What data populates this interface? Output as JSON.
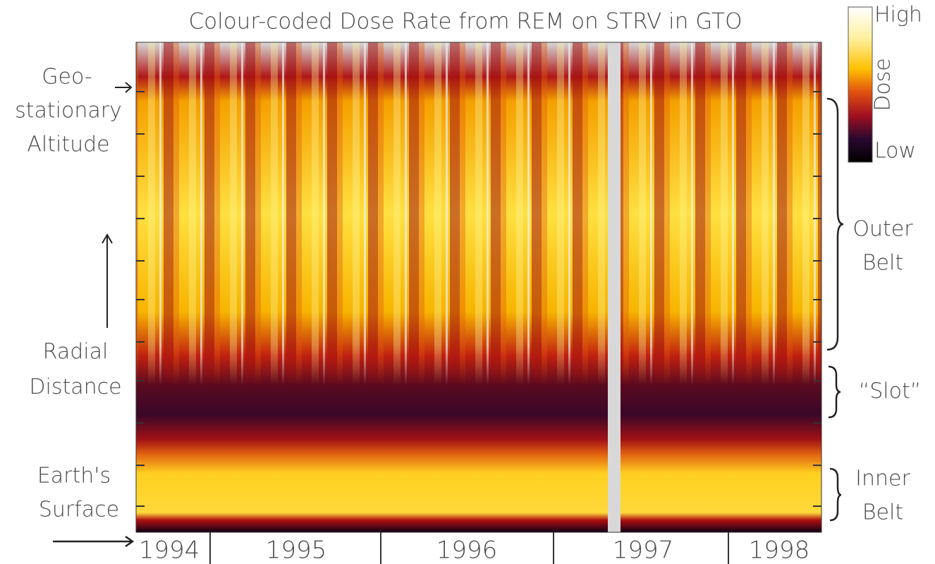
{
  "chart_data": {
    "type": "heatmap",
    "title": "Colour-coded Dose Rate from REM on STRV in GTO",
    "categories": [
      "1994",
      "1995",
      "1996",
      "1997",
      "1998"
    ],
    "colorbar": {
      "high": "High",
      "label": "Dose",
      "low": "Low"
    },
    "left_labels": [
      [
        "Geo-",
        "stationary",
        "Altitude"
      ],
      [
        "Radial",
        "Distance"
      ],
      [
        "Earth's",
        "Surface"
      ]
    ],
    "right_labels": [
      [
        "Outer",
        "Belt"
      ],
      [
        "“Slot”"
      ],
      [
        "Inner",
        "Belt"
      ]
    ]
  }
}
